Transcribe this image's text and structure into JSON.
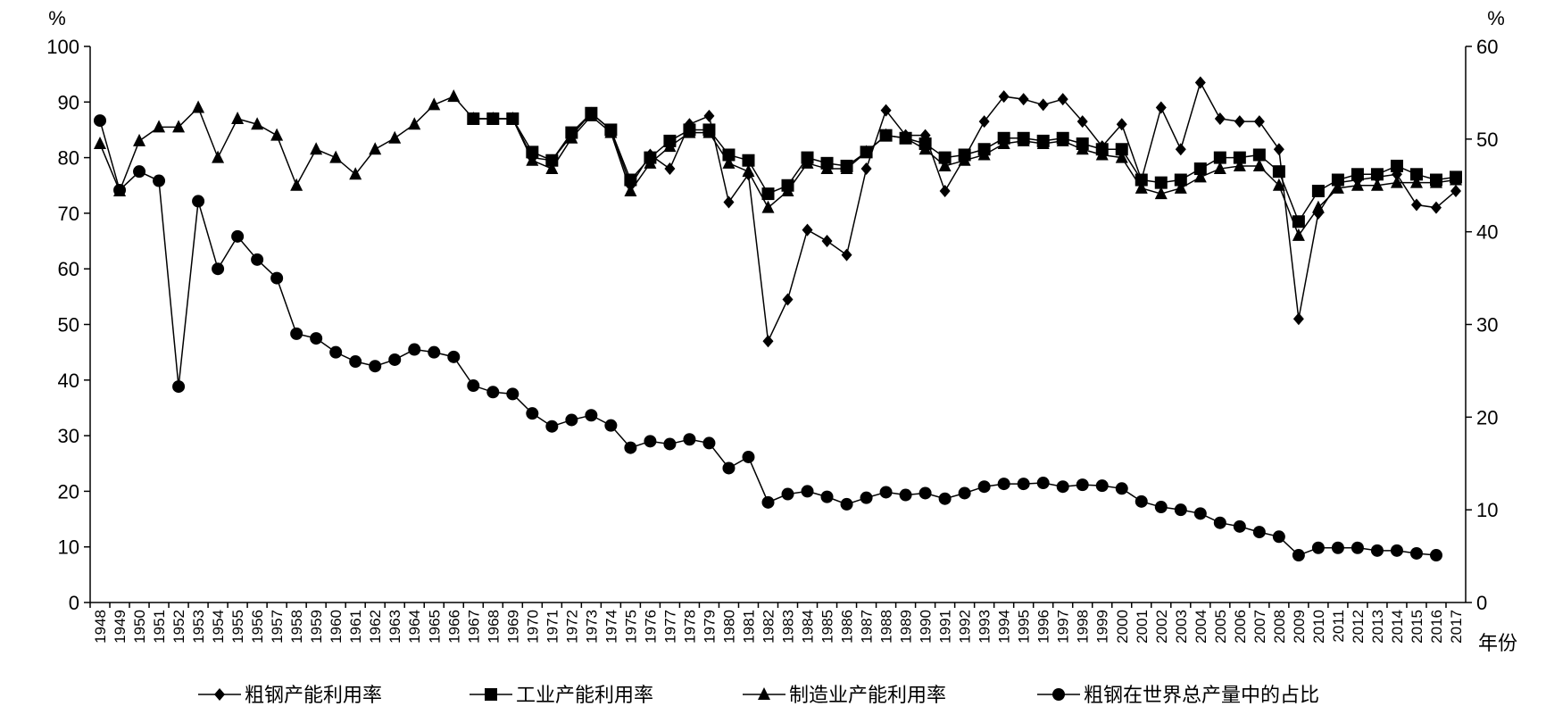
{
  "chart_data": {
    "type": "line",
    "categories": [
      "1948",
      "1949",
      "1950",
      "1951",
      "1952",
      "1953",
      "1954",
      "1955",
      "1956",
      "1957",
      "1958",
      "1959",
      "1960",
      "1961",
      "1962",
      "1963",
      "1964",
      "1965",
      "1966",
      "1967",
      "1968",
      "1969",
      "1970",
      "1971",
      "1972",
      "1973",
      "1974",
      "1975",
      "1976",
      "1977",
      "1978",
      "1979",
      "1980",
      "1981",
      "1982",
      "1983",
      "1984",
      "1985",
      "1986",
      "1987",
      "1988",
      "1989",
      "1990",
      "1991",
      "1992",
      "1993",
      "1994",
      "1995",
      "1996",
      "1997",
      "1998",
      "1999",
      "2000",
      "2001",
      "2002",
      "2003",
      "2004",
      "2005",
      "2006",
      "2007",
      "2008",
      "2009",
      "2010",
      "2011",
      "2012",
      "2013",
      "2014",
      "2015",
      "2016",
      "2017"
    ],
    "xlabel": "年份",
    "ylabel": "%",
    "y2label": "%",
    "ylim": [
      0,
      100
    ],
    "yticks": [
      0,
      10,
      20,
      30,
      40,
      50,
      60,
      70,
      80,
      90,
      100
    ],
    "y2lim": [
      0,
      60
    ],
    "y2ticks": [
      0,
      10,
      20,
      30,
      40,
      50,
      60
    ],
    "grid": false,
    "legend": "bottom",
    "series": [
      {
        "name": "粗钢产能利用率",
        "color": "#000000",
        "marker": "diamond",
        "values": [
          null,
          null,
          null,
          null,
          null,
          null,
          null,
          null,
          null,
          null,
          null,
          null,
          null,
          null,
          null,
          null,
          null,
          null,
          null,
          87,
          87,
          87,
          80,
          79.5,
          84,
          88,
          85,
          75,
          80.5,
          78,
          86,
          87.5,
          72,
          77,
          47,
          54.5,
          67,
          65,
          62.5,
          78,
          88.5,
          84,
          84,
          74,
          80,
          86.5,
          91,
          90.5,
          89.5,
          90.5,
          86.5,
          82,
          86,
          76,
          89,
          81.5,
          93.5,
          87,
          86.5,
          86.5,
          81.5,
          51,
          70,
          75.5,
          76,
          76.5,
          77,
          71.5,
          71,
          74
        ]
      },
      {
        "name": "工业产能利用率",
        "color": "#000000",
        "marker": "square",
        "values": [
          null,
          null,
          null,
          null,
          null,
          null,
          null,
          null,
          null,
          null,
          null,
          null,
          null,
          null,
          null,
          null,
          null,
          null,
          null,
          87,
          87,
          87,
          81,
          79.5,
          84.5,
          88,
          85,
          76,
          80,
          83,
          85,
          85,
          80.5,
          79.5,
          73.5,
          75,
          80,
          79,
          78.5,
          81,
          84,
          83.5,
          82.5,
          80,
          80.5,
          81.5,
          83.5,
          83.5,
          83,
          83.5,
          82.5,
          81.5,
          81.5,
          76,
          75.5,
          76,
          78,
          80,
          80,
          80.5,
          77.5,
          68.5,
          74,
          76,
          77,
          77,
          78.5,
          77,
          76,
          76.5
        ]
      },
      {
        "name": "制造业产能利用率",
        "color": "#000000",
        "marker": "triangle",
        "values": [
          82.5,
          74,
          83,
          85.5,
          85.5,
          89,
          80,
          87,
          86,
          84,
          75,
          81.5,
          80,
          77,
          81.5,
          83.5,
          86,
          89.5,
          91,
          87,
          87,
          87,
          79.5,
          78,
          83.5,
          87.5,
          84.5,
          74,
          79,
          82,
          84.5,
          84.5,
          79,
          77.5,
          71,
          74,
          79,
          78,
          78,
          81,
          84,
          83.5,
          81.5,
          78.5,
          79.5,
          80.5,
          82.5,
          83,
          82.5,
          83,
          81.5,
          80.5,
          80,
          74.5,
          73.5,
          74.5,
          76.5,
          78,
          78.5,
          78.5,
          75,
          66,
          71,
          74.5,
          75,
          75,
          75.5,
          75.5,
          75.5,
          76
        ]
      },
      {
        "name": "粗钢在世界总产量中的占比",
        "color": "#000000",
        "marker": "circle",
        "axis": "y2",
        "values": [
          52,
          44.5,
          46.5,
          45.5,
          23.3,
          43.3,
          36,
          39.5,
          37,
          35,
          29,
          28.5,
          27,
          26,
          25.5,
          26.2,
          27.3,
          27,
          26.5,
          23.4,
          22.7,
          22.5,
          20.4,
          19,
          19.7,
          20.2,
          19.1,
          16.7,
          17.4,
          17.1,
          17.6,
          17.2,
          14.5,
          15.7,
          10.8,
          11.7,
          12,
          11.4,
          10.6,
          11.3,
          11.9,
          11.6,
          11.8,
          11.2,
          11.8,
          12.5,
          12.8,
          12.8,
          12.9,
          12.5,
          12.7,
          12.6,
          12.3,
          10.9,
          10.3,
          10,
          9.6,
          8.6,
          8.2,
          7.6,
          7.1,
          5.1,
          5.9,
          5.9,
          5.9,
          5.6,
          5.6,
          5.3,
          5.1,
          null
        ]
      }
    ]
  }
}
